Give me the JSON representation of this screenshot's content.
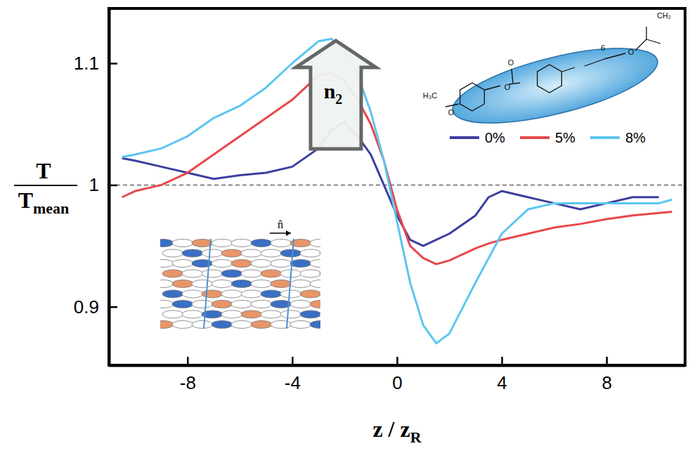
{
  "chart_data": {
    "type": "line",
    "xlabel": {
      "text": "z / z",
      "subscript": "R"
    },
    "ylabel": {
      "numerator": "T",
      "denominator": "T",
      "subscript": "mean"
    },
    "x": [
      -10.5,
      -10,
      -9,
      -8,
      -7,
      -6,
      -5,
      -4,
      -3,
      -2.5,
      -2,
      -1.5,
      -1,
      -0.5,
      0,
      0.5,
      1,
      1.5,
      2,
      3,
      3.5,
      4,
      5,
      6,
      7,
      8,
      9,
      10,
      10.5
    ],
    "series": [
      {
        "name": "0%",
        "color": "#3b3f9e",
        "values": [
          1.022,
          1.02,
          1.015,
          1.01,
          1.005,
          1.008,
          1.01,
          1.015,
          1.03,
          1.045,
          1.052,
          1.04,
          1.025,
          1.0,
          0.975,
          0.955,
          0.95,
          0.955,
          0.96,
          0.975,
          0.99,
          0.995,
          0.99,
          0.985,
          0.98,
          0.985,
          0.99,
          0.99,
          null
        ]
      },
      {
        "name": "5%",
        "color": "#e8474a",
        "values": [
          0.99,
          0.995,
          1.0,
          1.01,
          1.025,
          1.04,
          1.055,
          1.07,
          1.09,
          1.092,
          1.085,
          1.07,
          1.05,
          1.02,
          0.98,
          0.95,
          0.94,
          0.935,
          0.938,
          0.948,
          0.952,
          0.955,
          0.96,
          0.965,
          0.968,
          0.972,
          0.975,
          0.977,
          0.978
        ]
      },
      {
        "name": "8%",
        "color": "#5cc6f0",
        "values": [
          1.023,
          1.025,
          1.03,
          1.04,
          1.055,
          1.065,
          1.08,
          1.1,
          1.118,
          1.12,
          1.11,
          1.09,
          1.06,
          1.02,
          0.97,
          0.92,
          0.885,
          0.87,
          0.878,
          0.92,
          0.94,
          0.96,
          0.98,
          0.985,
          0.985,
          0.985,
          0.985,
          0.985,
          0.988
        ]
      }
    ],
    "xlim": [
      -11,
      11
    ],
    "xticks": [
      -8,
      -4,
      0,
      4,
      8
    ],
    "ylim": [
      0.852,
      1.145
    ],
    "yticks": [
      0.9,
      1,
      1.1
    ],
    "reference_line": 1,
    "legend": "top-right",
    "annotations": {
      "arrow_label": {
        "text": "n",
        "subscript": "2"
      },
      "inset_label": "n̂",
      "molecule_labels": [
        "H₃C",
        "O",
        "O",
        "O",
        "6",
        "O",
        "CH₂"
      ]
    }
  }
}
